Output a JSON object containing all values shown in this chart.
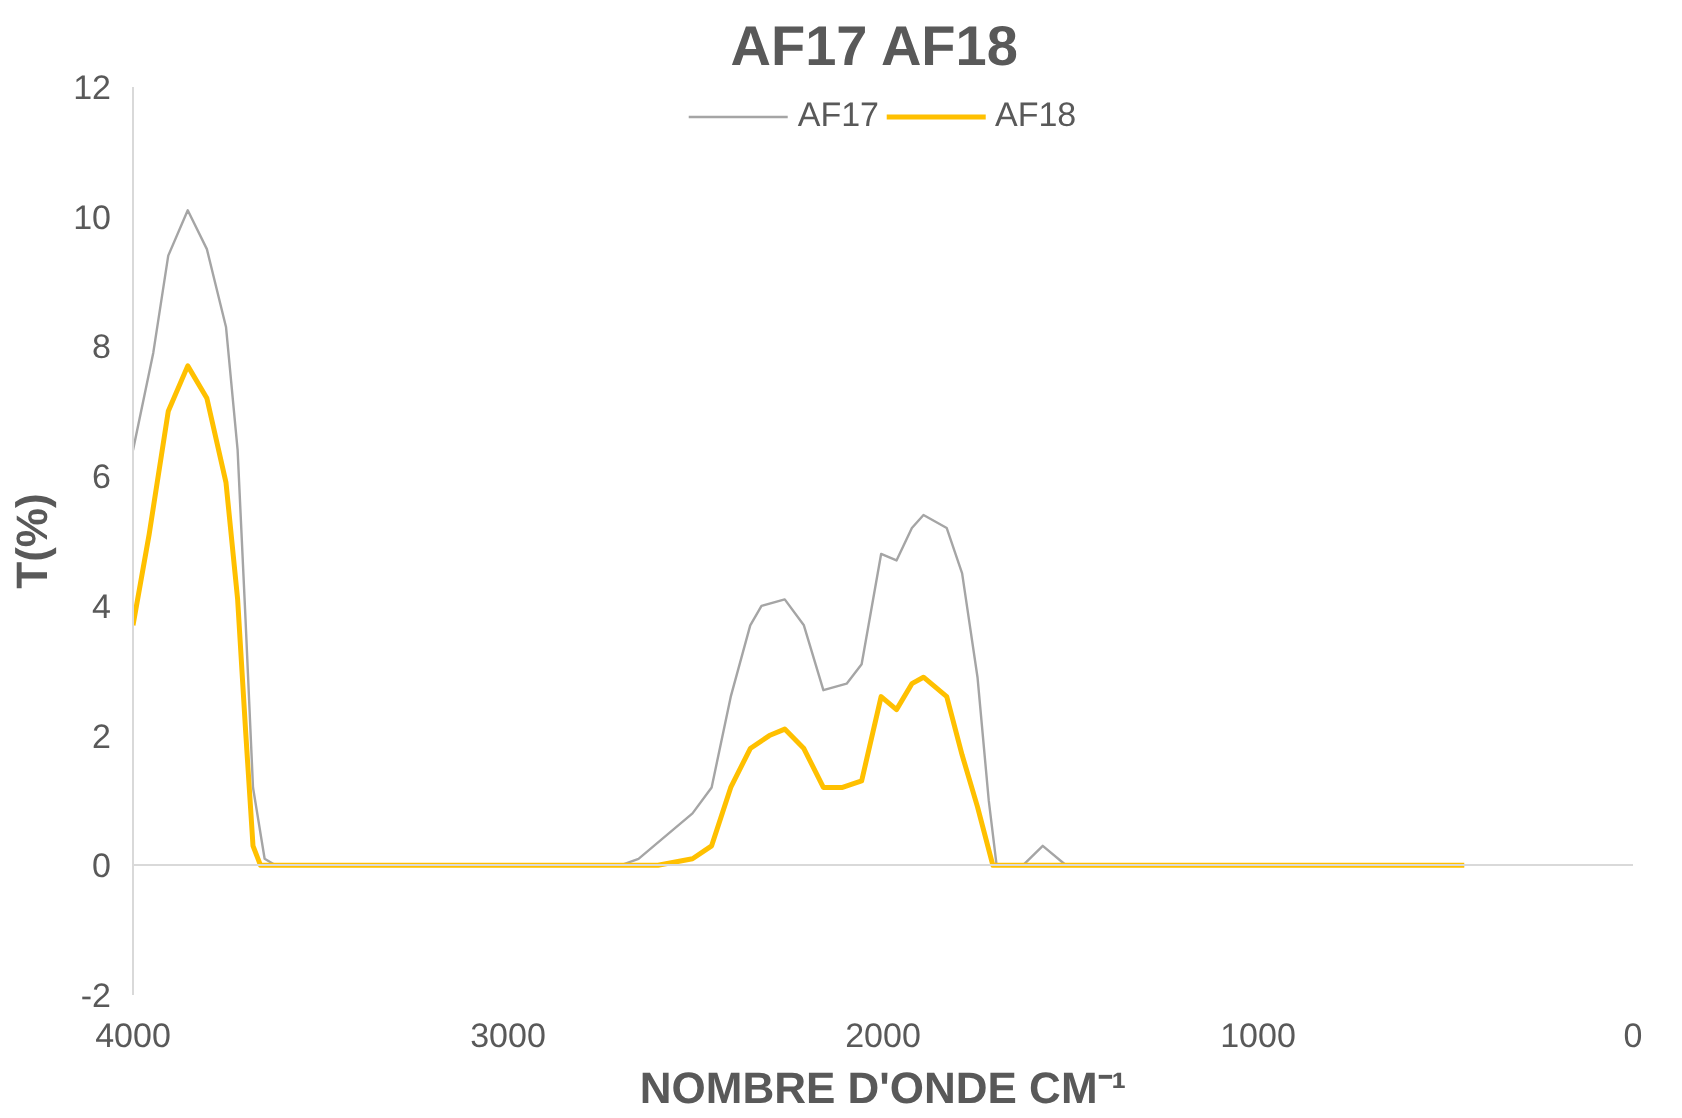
{
  "chart_data": {
    "type": "line",
    "title": "AF17  AF18",
    "xlabel": "NOMBRE D'ONDE CM⁻¹",
    "ylabel": "T(%)",
    "xlim": [
      4000,
      0
    ],
    "ylim": [
      -2,
      12
    ],
    "xticks": [
      4000,
      3000,
      2000,
      1000,
      0
    ],
    "yticks": [
      -2,
      0,
      2,
      4,
      6,
      8,
      10,
      12
    ],
    "legend": "top",
    "line_style": "solid",
    "marker": "none",
    "series": [
      {
        "name": "AF17",
        "color": "#a5a5a5",
        "x": [
          4000,
          3946,
          3906,
          3854,
          3803,
          3752,
          3721,
          3700,
          3680,
          3649,
          3620,
          2700,
          2652,
          2508,
          2457,
          2406,
          2354,
          2324,
          2262,
          2211,
          2159,
          2097,
          2057,
          2005,
          1964,
          1923,
          1892,
          1830,
          1789,
          1748,
          1718,
          1697,
          1627,
          1574,
          1512,
          450
        ],
        "values": [
          6.4,
          7.9,
          9.4,
          10.1,
          9.5,
          8.3,
          6.4,
          3.8,
          1.2,
          0.1,
          0,
          0,
          0.1,
          0.8,
          1.2,
          2.6,
          3.7,
          4,
          4.1,
          3.7,
          2.7,
          2.8,
          3.1,
          4.8,
          4.7,
          5.2,
          5.4,
          5.2,
          4.5,
          2.9,
          1,
          0,
          0,
          0.3,
          0,
          0
        ]
      },
      {
        "name": "AF18",
        "color": "#ffc000",
        "x": [
          4000,
          3957,
          3906,
          3854,
          3803,
          3752,
          3721,
          3700,
          3680,
          3660,
          2600,
          2508,
          2457,
          2406,
          2354,
          2303,
          2262,
          2211,
          2159,
          2108,
          2057,
          2005,
          1964,
          1923,
          1892,
          1830,
          1789,
          1748,
          1707,
          450
        ],
        "values": [
          3.7,
          5.1,
          7,
          7.7,
          7.2,
          5.9,
          4.1,
          2.1,
          0.3,
          0,
          0,
          0.1,
          0.3,
          1.2,
          1.8,
          2,
          2.1,
          1.8,
          1.2,
          1.2,
          1.3,
          2.6,
          2.4,
          2.8,
          2.9,
          2.6,
          1.7,
          0.9,
          0,
          0
        ]
      }
    ]
  }
}
